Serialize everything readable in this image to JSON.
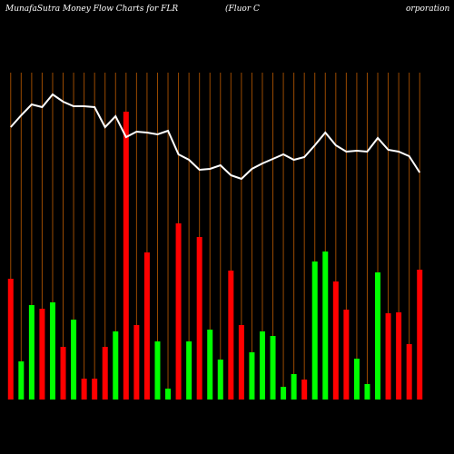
{
  "chart_data": {
    "type": "money-flow",
    "title": "MunafaSutra  Money Flow  Charts for FLR",
    "subtitle": "(Fluor C",
    "subtitle_tail": "orporation",
    "categories": [
      null,
      null,
      null,
      null,
      null,
      null,
      null,
      null,
      null,
      null,
      null,
      null,
      null,
      null,
      null,
      null,
      null,
      null,
      null,
      null,
      null,
      null,
      null,
      null,
      null,
      null,
      null,
      null,
      null,
      null,
      null,
      null,
      null,
      null,
      null,
      null,
      null,
      null,
      null,
      null
    ],
    "bar_values": [
      133,
      42,
      104,
      100,
      107,
      58,
      88,
      23,
      23,
      58,
      75,
      317,
      82,
      162,
      64,
      12,
      194,
      64,
      179,
      77,
      44,
      142,
      82,
      52,
      75,
      70,
      14,
      28,
      22,
      152,
      163,
      130,
      99,
      45,
      17,
      140,
      95,
      96,
      61,
      143
    ],
    "bar_colors": [
      "#ff0000",
      "#00ff00",
      "#00ff00",
      "#ff0000",
      "#00ff00",
      "#ff0000",
      "#00ff00",
      "#ff0000",
      "#ff0000",
      "#ff0000",
      "#00ff00",
      "#ff0000",
      "#ff0000",
      "#ff0000",
      "#00ff00",
      "#00ff00",
      "#ff0000",
      "#00ff00",
      "#ff0000",
      "#00ff00",
      "#00ff00",
      "#ff0000",
      "#ff0000",
      "#00ff00",
      "#00ff00",
      "#00ff00",
      "#00ff00",
      "#00ff00",
      "#ff0000",
      "#00ff00",
      "#00ff00",
      "#ff0000",
      "#ff0000",
      "#00ff00",
      "#00ff00",
      "#00ff00",
      "#ff0000",
      "#ff0000",
      "#ff0000",
      "#ff0000"
    ],
    "line_values": [
      300,
      313,
      325,
      322,
      336,
      328,
      323,
      323,
      322,
      300,
      312,
      289,
      295,
      294,
      292,
      296,
      270,
      264,
      253,
      254,
      258,
      247,
      243,
      254,
      260,
      265,
      270,
      264,
      267,
      280,
      294,
      280,
      273,
      274,
      273,
      288,
      275,
      273,
      268,
      250
    ],
    "line_color": "#ffffff",
    "grid_color": "#9a4a00",
    "ylim": [
      0,
      360
    ]
  }
}
